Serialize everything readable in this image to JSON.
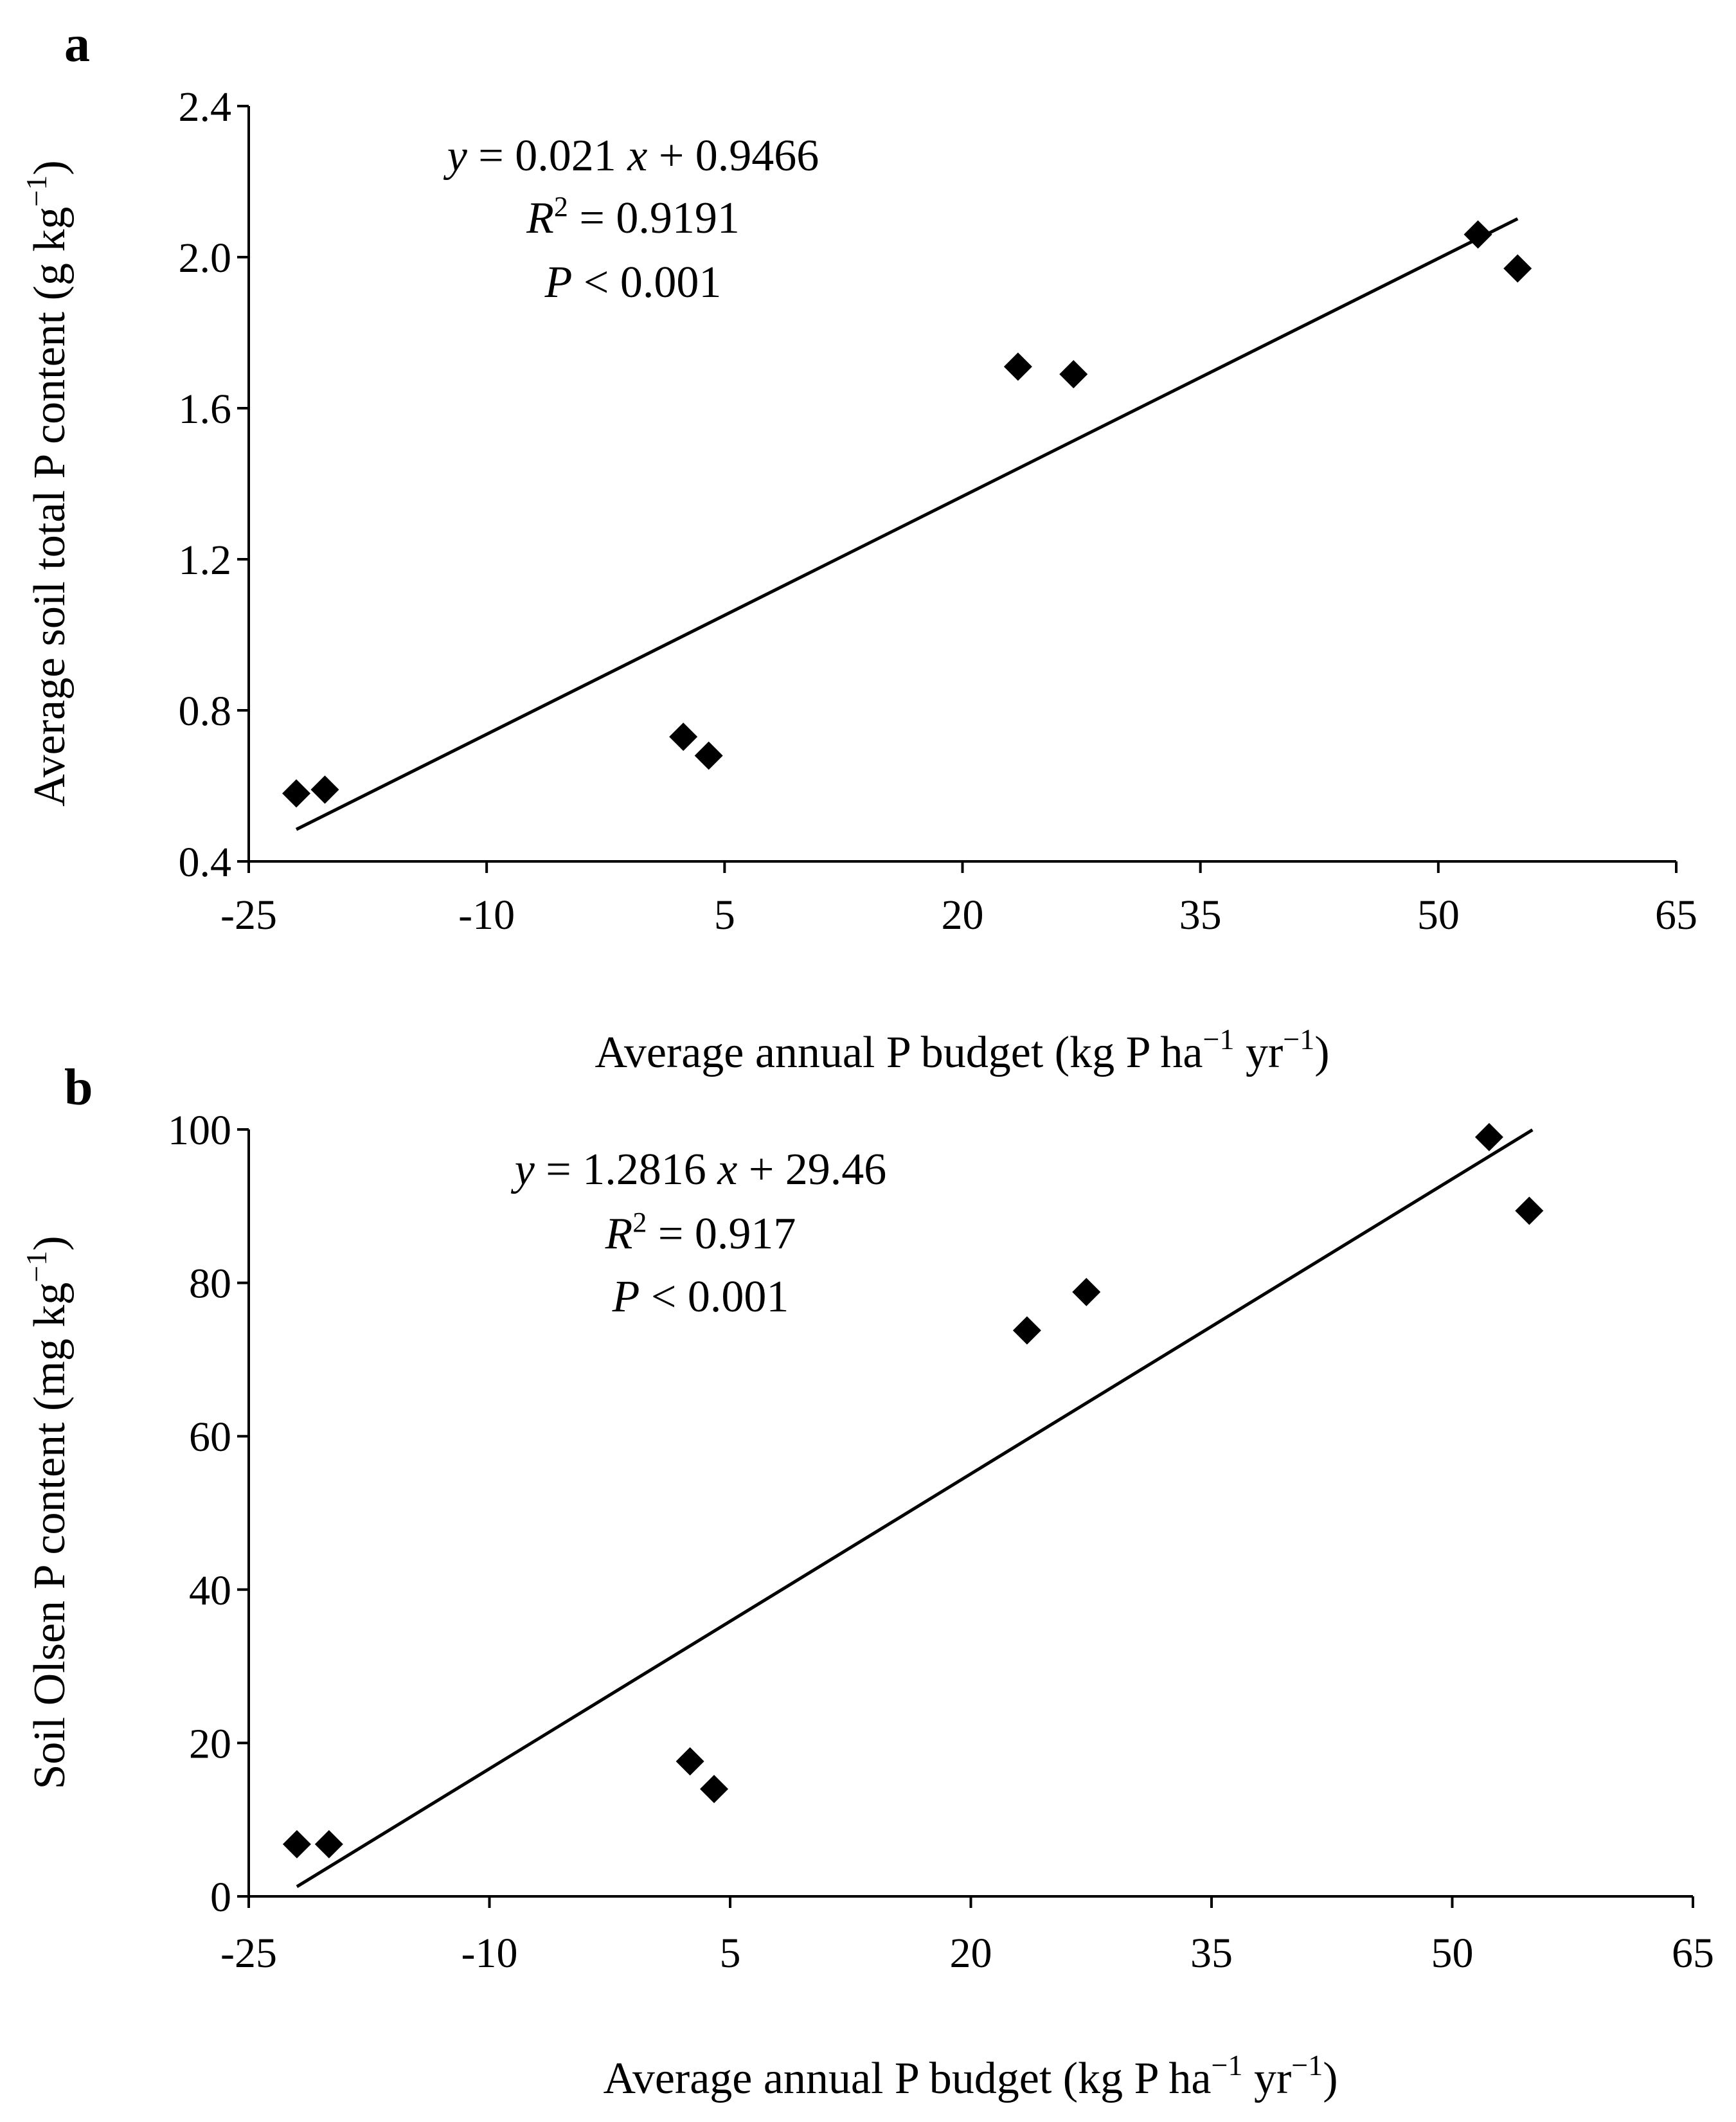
{
  "chart_data": [
    {
      "type": "scatter",
      "panel_label": "a",
      "xlabel": {
        "main": "Average annual P budget (kg P ha",
        "sup1": "−1",
        "mid": " yr",
        "sup2": "−1",
        "end": ")"
      },
      "ylabel": {
        "main": "Average soil total P content (g kg",
        "sup": "−1",
        "end": ")"
      },
      "xlim": [
        -25,
        65
      ],
      "ylim": [
        0.4,
        2.4
      ],
      "xticks": [
        -25,
        -10,
        5,
        20,
        35,
        50,
        65
      ],
      "xtick_labels": [
        "-25",
        "-10",
        "5",
        "20",
        "35",
        "50",
        "65"
      ],
      "yticks": [
        0.4,
        0.8,
        1.2,
        1.6,
        2.0,
        2.4
      ],
      "ytick_labels": [
        "0.4",
        "0.8",
        "1.2",
        "1.6",
        "2.0",
        "2.4"
      ],
      "points": [
        {
          "x": -22.0,
          "y": 0.58
        },
        {
          "x": -20.2,
          "y": 0.59
        },
        {
          "x": 2.4,
          "y": 0.73
        },
        {
          "x": 4.0,
          "y": 0.68
        },
        {
          "x": 23.5,
          "y": 1.71
        },
        {
          "x": 27.0,
          "y": 1.69
        },
        {
          "x": 52.5,
          "y": 2.06
        },
        {
          "x": 55.0,
          "y": 1.97
        }
      ],
      "fit": {
        "slope": 0.021,
        "intercept": 0.9466,
        "x_range": [
          -22,
          55
        ]
      },
      "equation": {
        "line1": {
          "var_y": "y",
          "eq_part1": " = 0.021 ",
          "var_x": "x",
          "eq_part2": " + 0.9466"
        },
        "line2": {
          "var_r": "R",
          "sup": "2",
          "rest": " = 0.9191"
        },
        "line3": {
          "var_p": "P",
          "rest": " < 0.001"
        }
      }
    },
    {
      "type": "scatter",
      "panel_label": "b",
      "xlabel": {
        "main": "Average annual P budget (kg P ha",
        "sup1": "−1",
        "mid": " yr",
        "sup2": "−1",
        "end": ")"
      },
      "ylabel": {
        "main": "Soil Olsen P content (mg kg",
        "sup": "−1",
        "end": ")"
      },
      "xlim": [
        -25,
        65
      ],
      "ylim": [
        0,
        100
      ],
      "xticks": [
        -25,
        -10,
        5,
        20,
        35,
        50,
        65
      ],
      "xtick_labels": [
        "-25",
        "-10",
        "5",
        "20",
        "35",
        "50",
        "65"
      ],
      "yticks": [
        0,
        20,
        40,
        60,
        80,
        100
      ],
      "ytick_labels": [
        "0",
        "20",
        "40",
        "60",
        "80",
        "100"
      ],
      "points": [
        {
          "x": -22.0,
          "y": 6.8
        },
        {
          "x": -20.0,
          "y": 6.8
        },
        {
          "x": 2.5,
          "y": 17.6
        },
        {
          "x": 4.0,
          "y": 14.0
        },
        {
          "x": 23.5,
          "y": 73.8
        },
        {
          "x": 27.2,
          "y": 78.8
        },
        {
          "x": 52.3,
          "y": 99.0
        },
        {
          "x": 54.8,
          "y": 89.4
        }
      ],
      "fit": {
        "slope": 1.2816,
        "intercept": 29.46,
        "x_range": [
          -22,
          55
        ]
      },
      "equation": {
        "line1": {
          "var_y": "y",
          "eq_part1": " = 1.2816 ",
          "var_x": "x",
          "eq_part2": " + 29.46"
        },
        "line2": {
          "var_r": "R",
          "sup": "2",
          "rest": " = 0.917"
        },
        "line3": {
          "var_p": "P",
          "rest": " < 0.001"
        }
      }
    }
  ]
}
